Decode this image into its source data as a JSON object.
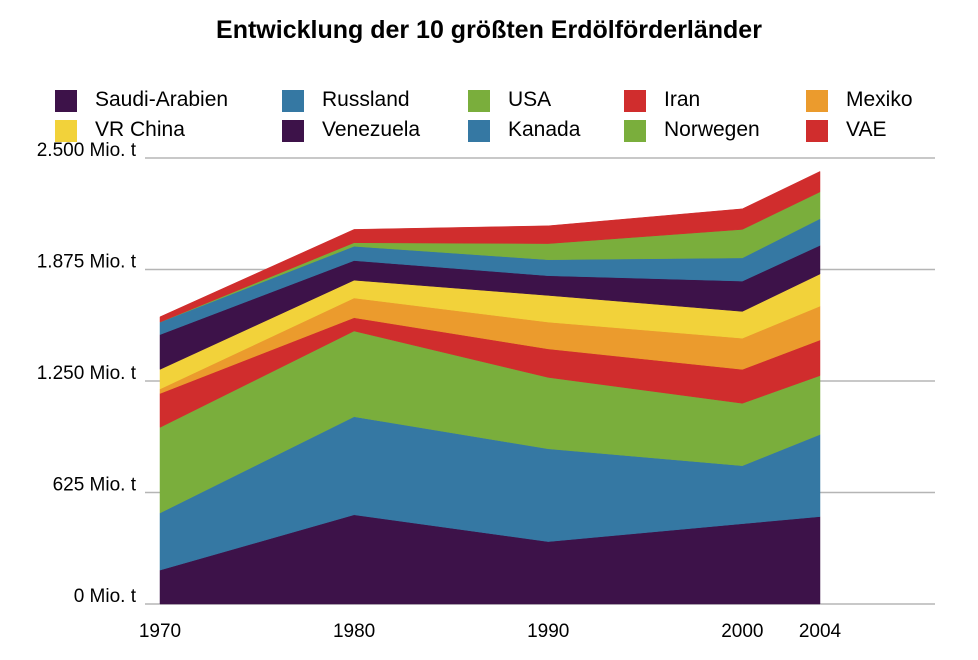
{
  "chart_data": {
    "type": "area",
    "stacked": true,
    "title": "Entwicklung der 10 größten Erdölförderländer",
    "x": [
      1970,
      1980,
      1990,
      2000,
      2004
    ],
    "x_tick_labels": [
      "1970",
      "1980",
      "1990",
      "2000",
      "2004"
    ],
    "ylim": [
      0,
      2500
    ],
    "y_ticks": [
      0,
      625,
      1250,
      1875,
      2500
    ],
    "y_tick_labels": [
      "0 Mio. t",
      "625 Mio. t",
      "1.250 Mio. t",
      "1.875 Mio. t",
      "2.500 Mio. t"
    ],
    "grid": "horizontal",
    "legend_position": "top",
    "series": [
      {
        "name": "Saudi-Arabien",
        "color": "#3d1249",
        "values": [
          190,
          500,
          350,
          450,
          490
        ]
      },
      {
        "name": "Russland",
        "color": "#3578a3",
        "values": [
          320,
          550,
          520,
          325,
          460
        ]
      },
      {
        "name": "USA",
        "color": "#7aae3c",
        "values": [
          480,
          480,
          400,
          350,
          330
        ]
      },
      {
        "name": "Iran",
        "color": "#d02d2d",
        "values": [
          190,
          75,
          160,
          190,
          200
        ]
      },
      {
        "name": "Mexiko",
        "color": "#eb9b2d",
        "values": [
          25,
          110,
          150,
          175,
          190
        ]
      },
      {
        "name": "VR China",
        "color": "#f2d23a",
        "values": [
          110,
          100,
          150,
          150,
          180
        ]
      },
      {
        "name": "Venezuela",
        "color": "#3d1249",
        "values": [
          195,
          110,
          110,
          170,
          160
        ]
      },
      {
        "name": "Kanada",
        "color": "#3578a3",
        "values": [
          70,
          80,
          90,
          130,
          150
        ]
      },
      {
        "name": "Norwegen",
        "color": "#7aae3c",
        "values": [
          0,
          20,
          90,
          160,
          150
        ]
      },
      {
        "name": "VAE",
        "color": "#d02d2d",
        "values": [
          30,
          75,
          100,
          115,
          115
        ]
      }
    ]
  }
}
